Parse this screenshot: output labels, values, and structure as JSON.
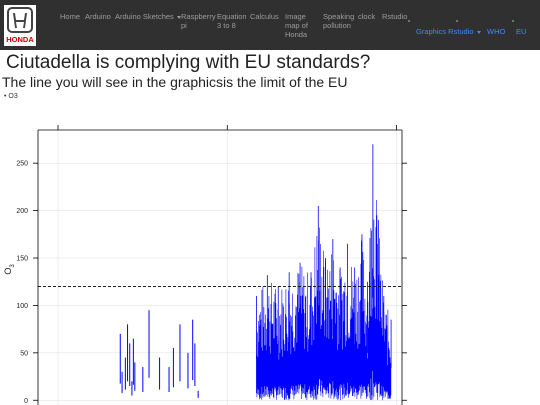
{
  "navbar": {
    "logo_text": "HONDA",
    "items": [
      {
        "label": "Home"
      },
      {
        "label": "Arduino"
      },
      {
        "label": "Arduino Sketches"
      },
      {
        "label": "Raspberry pi"
      },
      {
        "label": "Equation 3 to 8"
      },
      {
        "label": "Calculus"
      },
      {
        "label": "Image map of Honda"
      },
      {
        "label": "Speaking pollution"
      },
      {
        "label": "clock"
      },
      {
        "label": "Rstudio"
      },
      {
        "label": "Graphics Rstudio"
      },
      {
        "label": "WHO"
      },
      {
        "label": "EU"
      }
    ]
  },
  "page": {
    "title": "Ciutadella is complying with EU standards?",
    "subtitle": "The line you will see in the graphicsis the limit of the EU",
    "list": [
      "O3"
    ]
  },
  "colors": {
    "navbar_bg": "#303030",
    "nav_text": "#9d9d9d",
    "nav_active": "#4488ff",
    "series": "#0000ff",
    "limit_line": "#000000"
  },
  "chart_data": {
    "type": "line",
    "ylabel": "O3",
    "ylim": [
      -5,
      285
    ],
    "yticks": [
      0,
      50,
      100,
      150,
      200,
      250
    ],
    "grid": true,
    "eu_limit": 120,
    "series": [
      {
        "color": "#0000ff",
        "sparse_spikes": [
          {
            "t": 0.226,
            "v": 70
          },
          {
            "t": 0.231,
            "v": 30
          },
          {
            "t": 0.24,
            "v": 45
          },
          {
            "t": 0.246,
            "v": 80
          },
          {
            "t": 0.252,
            "v": 60
          },
          {
            "t": 0.258,
            "v": 20
          },
          {
            "t": 0.262,
            "v": 65
          },
          {
            "t": 0.266,
            "v": 40
          },
          {
            "t": 0.288,
            "v": 35
          },
          {
            "t": 0.305,
            "v": 95
          },
          {
            "t": 0.334,
            "v": 45
          },
          {
            "t": 0.36,
            "v": 35
          },
          {
            "t": 0.372,
            "v": 55
          },
          {
            "t": 0.39,
            "v": 80
          },
          {
            "t": 0.412,
            "v": 50
          },
          {
            "t": 0.425,
            "v": 85
          },
          {
            "t": 0.431,
            "v": 60
          },
          {
            "t": 0.44,
            "v": 10
          }
        ],
        "dense_start": 0.6,
        "dense_end": 0.97,
        "dense_peaks": [
          {
            "t": 0.6,
            "v": 110
          },
          {
            "t": 0.63,
            "v": 132
          },
          {
            "t": 0.66,
            "v": 120
          },
          {
            "t": 0.69,
            "v": 135
          },
          {
            "t": 0.72,
            "v": 145
          },
          {
            "t": 0.75,
            "v": 135
          },
          {
            "t": 0.77,
            "v": 205
          },
          {
            "t": 0.79,
            "v": 150
          },
          {
            "t": 0.81,
            "v": 170
          },
          {
            "t": 0.83,
            "v": 140
          },
          {
            "t": 0.85,
            "v": 165
          },
          {
            "t": 0.87,
            "v": 140
          },
          {
            "t": 0.89,
            "v": 175
          },
          {
            "t": 0.905,
            "v": 125
          },
          {
            "t": 0.92,
            "v": 270
          },
          {
            "t": 0.935,
            "v": 190
          },
          {
            "t": 0.95,
            "v": 110
          },
          {
            "t": 0.97,
            "v": 85
          }
        ]
      }
    ]
  }
}
